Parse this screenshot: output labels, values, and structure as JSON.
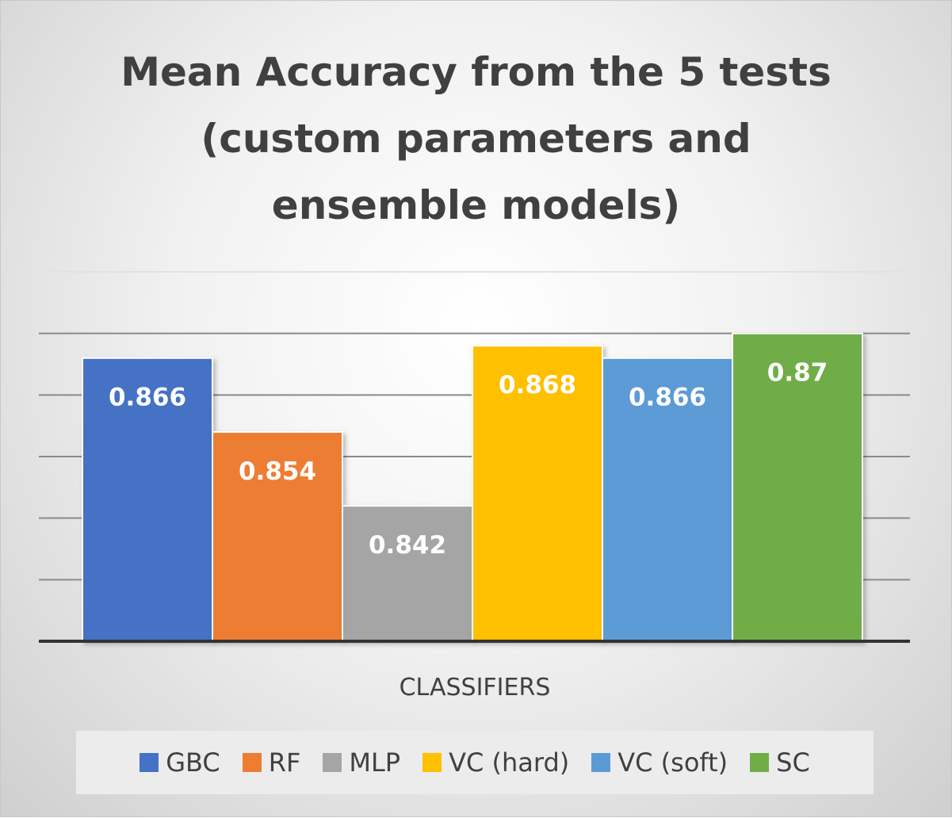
{
  "chart_data": {
    "type": "bar",
    "title_lines": [
      "Mean Accuracy from the 5 tests",
      "(custom parameters and",
      "ensemble models)"
    ],
    "xlabel": "CLASSIFIERS",
    "ylabel": "",
    "categories": [
      "CLASSIFIERS"
    ],
    "series": [
      {
        "name": "GBC",
        "values": [
          0.866
        ],
        "label": "0.866",
        "color": "#4472C4"
      },
      {
        "name": "RF",
        "values": [
          0.854
        ],
        "label": "0.854",
        "color": "#ED7D31"
      },
      {
        "name": "MLP",
        "values": [
          0.842
        ],
        "label": "0.842",
        "color": "#A5A5A5"
      },
      {
        "name": "VC (hard)",
        "values": [
          0.868
        ],
        "label": "0.868",
        "color": "#FFC000"
      },
      {
        "name": "VC (soft)",
        "values": [
          0.866
        ],
        "label": "0.866",
        "color": "#5B9BD5"
      },
      {
        "name": "SC",
        "values": [
          0.87
        ],
        "label": "0.87",
        "color": "#70AD47"
      }
    ],
    "ylim": [
      0.82,
      0.88
    ],
    "gridlines": [
      0.83,
      0.84,
      0.85,
      0.86,
      0.87,
      0.88
    ],
    "grid": true,
    "legend_position": "bottom"
  }
}
